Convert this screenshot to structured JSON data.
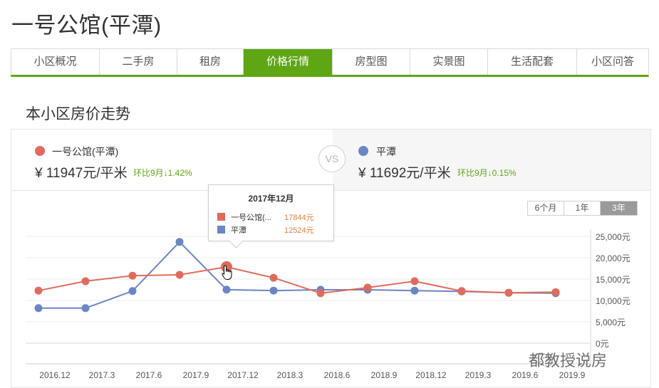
{
  "page": {
    "title": "一号公馆(平潭)",
    "section_title": "本小区房价走势"
  },
  "tabs": [
    {
      "label": "小区概况",
      "active": false
    },
    {
      "label": "二手房",
      "active": false
    },
    {
      "label": "租房",
      "active": false
    },
    {
      "label": "价格行情",
      "active": true
    },
    {
      "label": "房型图",
      "active": false
    },
    {
      "label": "实景图",
      "active": false
    },
    {
      "label": "生活配套",
      "active": false
    },
    {
      "label": "小区问答",
      "active": false
    }
  ],
  "compare": {
    "left": {
      "name": "一号公馆(平潭)",
      "currency": "¥",
      "price": "11947元/平米",
      "change": "环比9月↓1.42%",
      "color": "#e06b5c"
    },
    "vs_label": "VS",
    "right": {
      "name": "平潭",
      "currency": "¥",
      "price": "11692元/平米",
      "change": "环比9月↓0.15%",
      "color": "#6b86c4"
    }
  },
  "range_buttons": [
    {
      "label": "6个月",
      "active": false
    },
    {
      "label": "1年",
      "active": false
    },
    {
      "label": "3年",
      "active": true
    }
  ],
  "tooltip": {
    "title": "2017年12月",
    "rows": [
      {
        "name": "一号公馆(...",
        "value": "17844元",
        "color": "#e06b5c"
      },
      {
        "name": "平潭",
        "value": "12524元",
        "color": "#6b86c4"
      }
    ]
  },
  "watermark": "都教授说房",
  "chart_data": {
    "type": "line",
    "title": "本小区房价走势",
    "xlabel": "",
    "ylabel": "",
    "x": [
      "2016.12",
      "2017.3",
      "2017.6",
      "2017.9",
      "2017.12",
      "2018.3",
      "2018.6",
      "2018.9",
      "2018.12",
      "2019.3",
      "2019.6",
      "2019.9"
    ],
    "y_ticks": [
      "0元",
      "5,000元",
      "10,000元",
      "15,000元",
      "20,000元",
      "25,000元"
    ],
    "ylim": [
      0,
      25000
    ],
    "grid": true,
    "legend_position": "top",
    "series": [
      {
        "name": "一号公馆(平潭)",
        "color": "#e06b5c",
        "values": [
          12300,
          14500,
          15800,
          16000,
          17844,
          15300,
          11700,
          13000,
          14500,
          12200,
          11800,
          11947
        ]
      },
      {
        "name": "平潭",
        "color": "#6b86c4",
        "values": [
          8200,
          8200,
          12200,
          23700,
          12524,
          12300,
          12500,
          12500,
          12300,
          12100,
          11800,
          11692
        ]
      }
    ],
    "highlighted_index": 4
  }
}
